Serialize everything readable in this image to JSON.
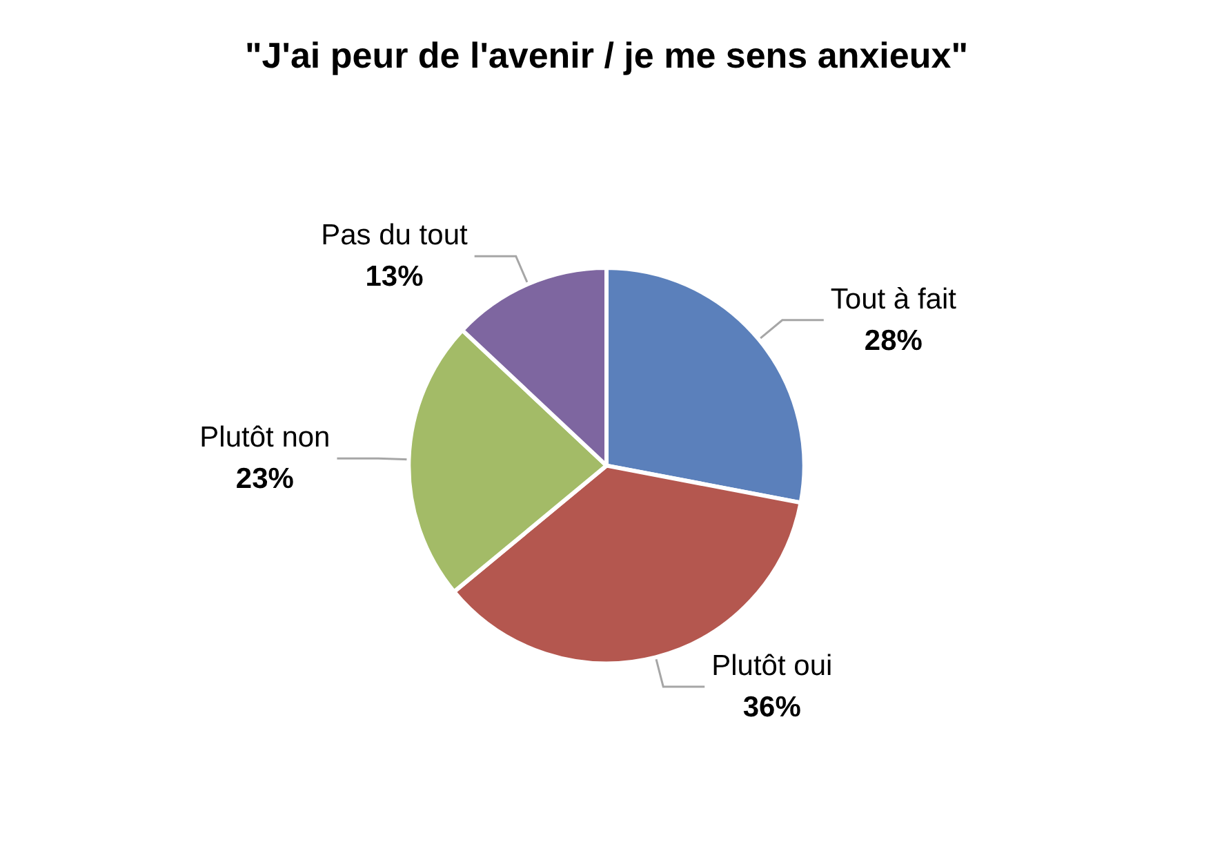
{
  "chart_data": {
    "type": "pie",
    "title": "\"J'ai peur de l'avenir / je me sens anxieux\"",
    "categories": [
      "Tout à fait",
      "Plutôt oui",
      "Plutôt non",
      "Pas du tout"
    ],
    "values": [
      28,
      36,
      23,
      13
    ],
    "colors": [
      "#5b80bb",
      "#b4574f",
      "#a3bb67",
      "#7e66a0"
    ],
    "value_labels": [
      "28%",
      "36%",
      "23%",
      "13%"
    ],
    "legend": false
  }
}
